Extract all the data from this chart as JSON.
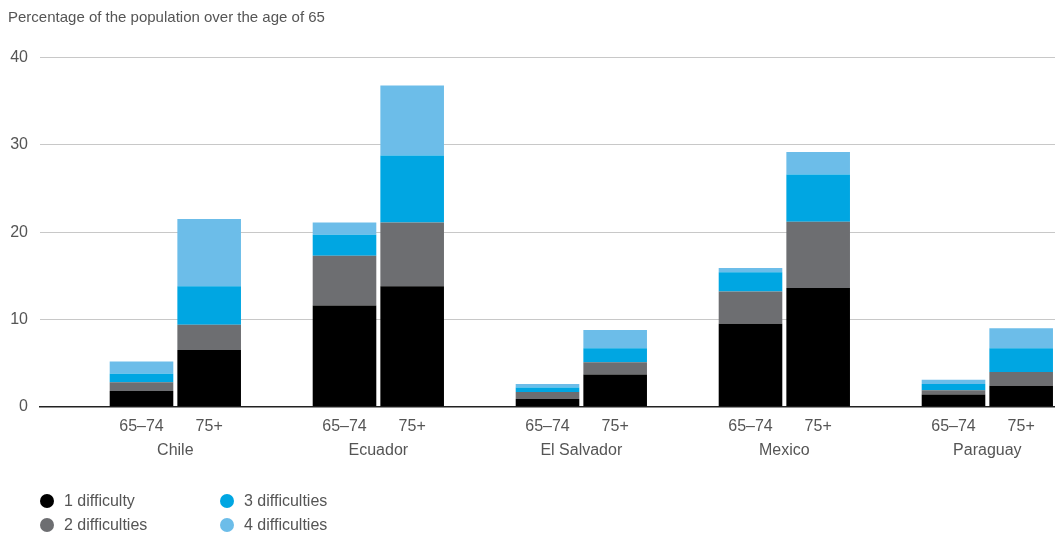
{
  "chart_data": {
    "type": "bar",
    "stacked": true,
    "ylabel": "Percentage of the population over the age of 65",
    "categories": [
      null,
      "65–74",
      "75+",
      null,
      "65–74",
      "75+",
      null,
      "65–74",
      "75+",
      null,
      "65–74",
      "75+",
      null,
      "65–74",
      "75+"
    ],
    "series": [
      {
        "name": "1 difficulty",
        "color": "#000000",
        "values": [
          null,
          1.8,
          6.5,
          null,
          11.6,
          13.8,
          null,
          0.9,
          3.7,
          null,
          9.5,
          13.6,
          null,
          1.4,
          2.4
        ]
      },
      {
        "name": "2 difficulties",
        "color": "#6d6e71",
        "values": [
          null,
          1.0,
          2.9,
          null,
          5.7,
          7.3,
          null,
          0.8,
          1.4,
          null,
          3.7,
          7.6,
          null,
          0.5,
          1.6
        ]
      },
      {
        "name": "3 difficulties",
        "color": "#00a6e2",
        "values": [
          null,
          1.0,
          4.4,
          null,
          2.4,
          7.7,
          null,
          0.5,
          1.6,
          null,
          2.2,
          5.4,
          null,
          0.7,
          2.7
        ]
      },
      {
        "name": "4 difficulties",
        "color": "#6cbde9",
        "values": [
          null,
          1.4,
          7.7,
          null,
          1.4,
          8.0,
          null,
          0.4,
          2.1,
          null,
          0.5,
          2.6,
          null,
          0.5,
          2.3
        ]
      }
    ],
    "annotations": [
      "Chile",
      "Ecuador",
      "El Salvador",
      "Mexico",
      "Paraguay"
    ],
    "ylim": [
      0,
      40
    ],
    "yticks": [
      0,
      10,
      20,
      30,
      40
    ],
    "grid": "y",
    "legend": "bottom left"
  }
}
